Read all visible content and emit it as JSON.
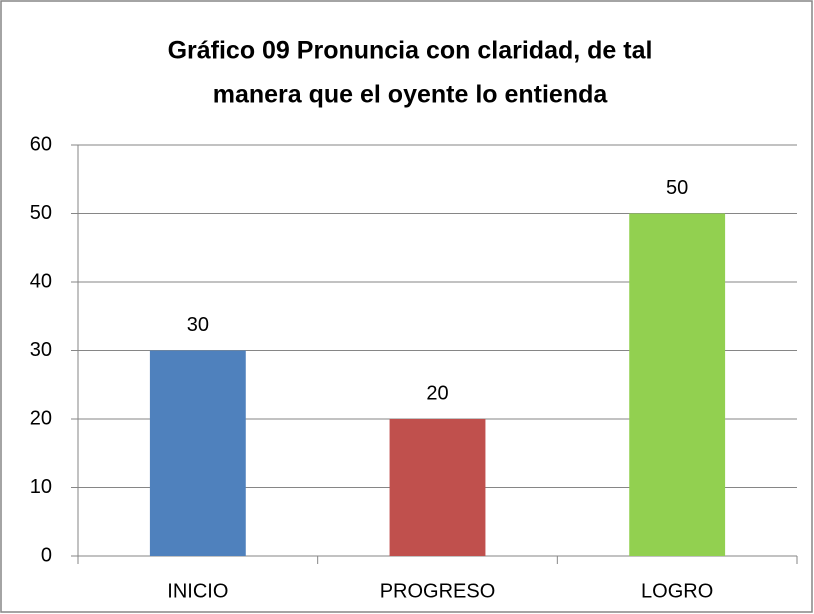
{
  "chart_data": {
    "type": "bar",
    "title": [
      "Gráfico 09 Pronuncia con claridad, de tal",
      "manera que el oyente lo entienda"
    ],
    "categories": [
      "INICIO",
      "PROGRESO",
      "LOGRO"
    ],
    "values": [
      30,
      20,
      50
    ],
    "colors": [
      "#4f81bd",
      "#c0504d",
      "#92d050"
    ],
    "ylim": [
      0,
      60
    ],
    "yticks": [
      0,
      10,
      20,
      30,
      40,
      50,
      60
    ],
    "grid": true
  }
}
